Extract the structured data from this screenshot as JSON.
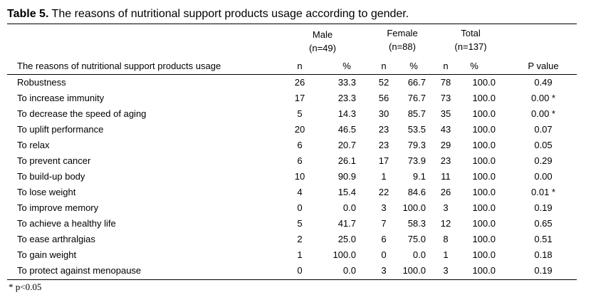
{
  "caption": {
    "label": "Table 5.",
    "text": " The reasons of nutritional support products usage according to gender."
  },
  "groups": [
    {
      "name": "Male",
      "n": "(n=49)"
    },
    {
      "name": "Female",
      "n": "(n=88)"
    },
    {
      "name": "Total",
      "n": "(n=137)"
    }
  ],
  "columns": [
    "The reasons of nutritional support products usage",
    "n",
    "%",
    "n",
    "%",
    "n",
    "%",
    "P value"
  ],
  "rows": [
    [
      "Robustness",
      "26",
      "33.3",
      "52",
      "66.7",
      "78",
      "100.0",
      "0.49"
    ],
    [
      "To increase immunity",
      "17",
      "23.3",
      "56",
      "76.7",
      "73",
      "100.0",
      "0.00 *"
    ],
    [
      "To decrease the speed of aging",
      "5",
      "14.3",
      "30",
      "85.7",
      "35",
      "100.0",
      "0.00 *"
    ],
    [
      "To uplift performance",
      "20",
      "46.5",
      "23",
      "53.5",
      "43",
      "100.0",
      "0.07"
    ],
    [
      "To relax",
      "6",
      "20.7",
      "23",
      "79.3",
      "29",
      "100.0",
      "0.05"
    ],
    [
      "To prevent cancer",
      "6",
      "26.1",
      "17",
      "73.9",
      "23",
      "100.0",
      "0.29"
    ],
    [
      "To build-up body",
      "10",
      "90.9",
      "1",
      "9.1",
      "11",
      "100.0",
      "0.00"
    ],
    [
      "To lose weight",
      "4",
      "15.4",
      "22",
      "84.6",
      "26",
      "100.0",
      "0.01 *"
    ],
    [
      "To improve memory",
      "0",
      "0.0",
      "3",
      "100.0",
      "3",
      "100.0",
      "0.19"
    ],
    [
      "To achieve a healthy life",
      "5",
      "41.7",
      "7",
      "58.3",
      "12",
      "100.0",
      "0.65"
    ],
    [
      "To ease arthralgias",
      "2",
      "25.0",
      "6",
      "75.0",
      "8",
      "100.0",
      "0.51"
    ],
    [
      "To gain weight",
      "1",
      "100.0",
      "0",
      "0.0",
      "1",
      "100.0",
      "0.18"
    ],
    [
      "To protect against menopause",
      "0",
      "0.0",
      "3",
      "100.0",
      "3",
      "100.0",
      "0.19"
    ]
  ],
  "footnote": "* p<0.05"
}
